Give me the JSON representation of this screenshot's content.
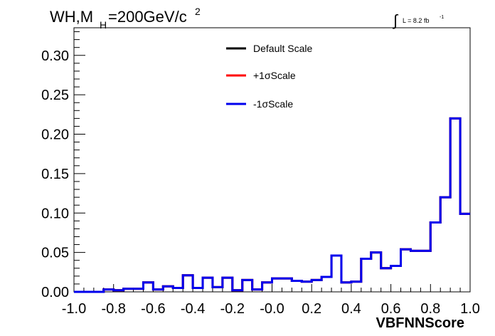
{
  "chart_data": {
    "type": "line",
    "title_parts": {
      "base": "WH,M",
      "sub": "H",
      "rest": "=200GeV/c",
      "sup": "2"
    },
    "lumi_text": "L = 8.2 fb",
    "lumi_sup": "-1",
    "integral_sign": "∫",
    "xlabel": "VBFNNScore",
    "ylabel": "",
    "xlim": [
      -1.0,
      1.0
    ],
    "ylim": [
      0.0,
      0.335
    ],
    "x_ticks": [
      "-1.0",
      "-0.8",
      "-0.6",
      "-0.4",
      "-0.2",
      "-0.0",
      "0.2",
      "0.4",
      "0.6",
      "0.8",
      "1.0"
    ],
    "y_ticks": [
      "0.00",
      "0.05",
      "0.10",
      "0.15",
      "0.20",
      "0.25",
      "0.30"
    ],
    "grid": false,
    "legend_position": "top-center",
    "bin_edges": [
      -1.0,
      -0.95,
      -0.9,
      -0.85,
      -0.8,
      -0.75,
      -0.7,
      -0.65,
      -0.6,
      -0.55,
      -0.5,
      -0.45,
      -0.4,
      -0.35,
      -0.3,
      -0.25,
      -0.2,
      -0.15,
      -0.1,
      -0.05,
      0.0,
      0.05,
      0.1,
      0.15,
      0.2,
      0.25,
      0.3,
      0.35,
      0.4,
      0.45,
      0.5,
      0.55,
      0.6,
      0.65,
      0.7,
      0.75,
      0.8,
      0.85,
      0.9,
      0.95,
      1.0
    ],
    "series": [
      {
        "name": "Default Scale",
        "color": "#000000",
        "values": [
          0.0,
          0.0,
          0.0,
          0.003,
          0.002,
          0.004,
          0.004,
          0.012,
          0.003,
          0.007,
          0.005,
          0.021,
          0.005,
          0.018,
          0.006,
          0.018,
          0.002,
          0.015,
          0.003,
          0.012,
          0.017,
          0.017,
          0.014,
          0.013,
          0.015,
          0.019,
          0.046,
          0.012,
          0.013,
          0.042,
          0.05,
          0.03,
          0.033,
          0.054,
          0.052,
          0.052,
          0.088,
          0.12,
          0.22,
          0.099
        ]
      },
      {
        "name": "+1σScale",
        "color": "#ff0000",
        "values": [
          0.0,
          0.0,
          0.0,
          0.003,
          0.002,
          0.004,
          0.004,
          0.012,
          0.003,
          0.007,
          0.005,
          0.021,
          0.005,
          0.018,
          0.006,
          0.018,
          0.002,
          0.015,
          0.003,
          0.012,
          0.017,
          0.017,
          0.014,
          0.013,
          0.015,
          0.019,
          0.046,
          0.012,
          0.013,
          0.042,
          0.05,
          0.03,
          0.033,
          0.054,
          0.052,
          0.052,
          0.088,
          0.12,
          0.22,
          0.099
        ]
      },
      {
        "name": "-1σScale",
        "color": "#0000ee",
        "values": [
          0.0,
          0.0,
          0.0,
          0.003,
          0.002,
          0.004,
          0.004,
          0.012,
          0.003,
          0.007,
          0.005,
          0.021,
          0.005,
          0.018,
          0.006,
          0.018,
          0.002,
          0.015,
          0.003,
          0.012,
          0.017,
          0.017,
          0.014,
          0.013,
          0.015,
          0.019,
          0.046,
          0.012,
          0.013,
          0.042,
          0.05,
          0.03,
          0.033,
          0.054,
          0.052,
          0.052,
          0.088,
          0.12,
          0.22,
          0.099
        ]
      }
    ]
  }
}
